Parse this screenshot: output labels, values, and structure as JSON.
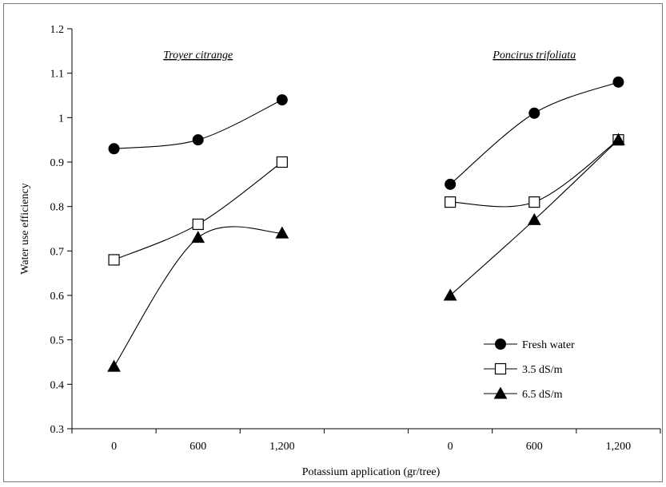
{
  "chart_data": {
    "type": "line",
    "xlabel": "Potassium application (gr/tree)",
    "ylabel": "Water use efficiency",
    "ylim": [
      0.3,
      1.2
    ],
    "yticks": [
      "0.3",
      "0.4",
      "0.5",
      "0.6",
      "0.7",
      "0.8",
      "0.9",
      "1",
      "1.1",
      "1.2"
    ],
    "grid": false,
    "legend_position": "bottom-right",
    "groups": [
      {
        "title": "Troyer citrange",
        "categories": [
          "0",
          "600",
          "1,200"
        ],
        "series": [
          {
            "name": "Fresh water",
            "values": [
              0.93,
              0.95,
              1.04
            ]
          },
          {
            "name": "3.5 dS/m",
            "values": [
              0.68,
              0.76,
              0.9
            ]
          },
          {
            "name": "6.5 dS/m",
            "values": [
              0.44,
              0.73,
              0.74
            ]
          }
        ]
      },
      {
        "title": "Poncirus trifoliata",
        "categories": [
          "0",
          "600",
          "1,200"
        ],
        "series": [
          {
            "name": "Fresh water",
            "values": [
              0.85,
              1.01,
              1.08
            ]
          },
          {
            "name": "3.5 dS/m",
            "values": [
              0.81,
              0.81,
              0.95
            ]
          },
          {
            "name": "6.5 dS/m",
            "values": [
              0.6,
              0.77,
              0.95
            ]
          }
        ]
      }
    ],
    "legend": [
      {
        "name": "Fresh water",
        "marker": "circle-filled"
      },
      {
        "name": "3.5 dS/m",
        "marker": "square-open"
      },
      {
        "name": "6.5 dS/m",
        "marker": "triangle-filled"
      }
    ],
    "colors": {
      "line": "#000000",
      "marker_fill": "#000000",
      "open_marker_fill": "#ffffff"
    }
  }
}
